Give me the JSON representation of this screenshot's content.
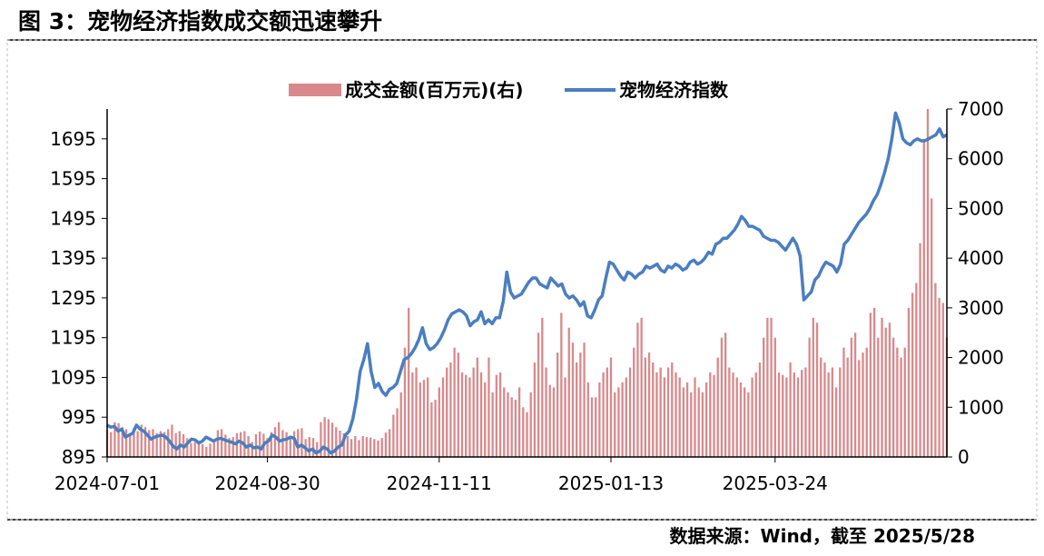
{
  "header": {
    "title": "图 3：宠物经济指数成交额迅速攀升"
  },
  "footer": {
    "source": "数据来源：Wind，截至 2025/5/28"
  },
  "colors": {
    "bar": "#d9898c",
    "line": "#4a7ec0",
    "axis": "#000000",
    "border": "#000000"
  },
  "chart_data": {
    "type": "bar+line",
    "legend": [
      "成交金额(百万元)(右)",
      "宠物经济指数"
    ],
    "x_ticks": [
      "2024-07-01",
      "2024-08-30",
      "2024-11-11",
      "2025-01-13",
      "2025-03-24"
    ],
    "y_left": {
      "ylim": [
        895,
        1770
      ],
      "ticks": [
        "895",
        "995",
        "1095",
        "1195",
        "1295",
        "1395",
        "1495",
        "1595",
        "1695"
      ]
    },
    "y_right": {
      "ylim": [
        0,
        7000
      ],
      "ticks": [
        "0",
        "1000",
        "2000",
        "3000",
        "4000",
        "5000",
        "6000",
        "7000"
      ]
    },
    "series": [
      {
        "name": "成交金额(百万元)(右)",
        "axis": "right",
        "values": [
          550,
          500,
          700,
          680,
          600,
          560,
          450,
          580,
          520,
          650,
          600,
          540,
          560,
          480,
          520,
          500,
          560,
          650,
          480,
          520,
          460,
          380,
          280,
          300,
          330,
          260,
          200,
          270,
          330,
          540,
          560,
          450,
          380,
          400,
          480,
          500,
          520,
          420,
          300,
          460,
          510,
          470,
          380,
          500,
          600,
          700,
          540,
          500,
          400,
          520,
          560,
          580,
          360,
          400,
          380,
          300,
          700,
          800,
          760,
          690,
          600,
          530,
          480,
          420,
          360,
          420,
          340,
          420,
          400,
          390,
          360,
          330,
          380,
          490,
          560,
          850,
          980,
          1300,
          2200,
          3000,
          1700,
          1800,
          1500,
          1550,
          1600,
          1100,
          1150,
          1400,
          1600,
          1800,
          1900,
          2200,
          2100,
          1700,
          1650,
          1600,
          1800,
          2000,
          1700,
          1500,
          2000,
          1300,
          1650,
          1700,
          1400,
          1300,
          1200,
          1150,
          1400,
          1000,
          900,
          1300,
          1900,
          2500,
          2800,
          1800,
          1450,
          1400,
          2100,
          2900,
          1600,
          2600,
          2300,
          1900,
          2100,
          2300,
          1500,
          1200,
          1200,
          1500,
          1700,
          1800,
          2000,
          1300,
          1400,
          1500,
          1600,
          1800,
          2200,
          2700,
          2800,
          2000,
          2100,
          1900,
          1700,
          1800,
          1600,
          1800,
          1900,
          1700,
          1600,
          1400,
          1500,
          1300,
          1600,
          1400,
          1300,
          1500,
          1700,
          1650,
          2000,
          2400,
          2500,
          1800,
          1700,
          1600,
          1500,
          1400,
          1300,
          1600,
          1700,
          1900,
          2400,
          2800,
          2800,
          2400,
          1700,
          1650,
          1600,
          1900,
          1700,
          1600,
          1750,
          1800,
          2400,
          2800,
          2700,
          2000,
          1900,
          1700,
          1800,
          1400,
          1800,
          2200,
          2000,
          2400,
          2500,
          1950,
          2100,
          2200,
          2900,
          3000,
          2400,
          2800,
          2600,
          2700,
          2400,
          2200,
          2000,
          2200,
          3000,
          3300,
          3500,
          4300,
          6400,
          7000,
          5200,
          3500,
          3200,
          3100,
          2400
        ],
        "color": "#d9898c"
      },
      {
        "name": "宠物经济指数",
        "axis": "left",
        "values": [
          975,
          970,
          972,
          960,
          965,
          945,
          950,
          955,
          975,
          965,
          960,
          950,
          940,
          945,
          948,
          950,
          945,
          935,
          922,
          915,
          925,
          920,
          930,
          940,
          938,
          930,
          935,
          945,
          940,
          935,
          940,
          942,
          938,
          935,
          932,
          928,
          935,
          930,
          920,
          925,
          918,
          920,
          915,
          930,
          935,
          950,
          945,
          935,
          938,
          940,
          945,
          942,
          920,
          925,
          918,
          910,
          915,
          905,
          910,
          920,
          915,
          905,
          910,
          920,
          925,
          950,
          960,
          990,
          1040,
          1110,
          1140,
          1180,
          1110,
          1070,
          1080,
          1060,
          1050,
          1065,
          1070,
          1080,
          1110,
          1140,
          1145,
          1155,
          1170,
          1190,
          1220,
          1180,
          1165,
          1170,
          1180,
          1195,
          1215,
          1240,
          1255,
          1260,
          1265,
          1260,
          1250,
          1225,
          1235,
          1240,
          1260,
          1230,
          1240,
          1230,
          1245,
          1245,
          1285,
          1360,
          1310,
          1295,
          1300,
          1305,
          1320,
          1335,
          1345,
          1345,
          1330,
          1325,
          1320,
          1345,
          1335,
          1325,
          1330,
          1305,
          1295,
          1300,
          1290,
          1275,
          1285,
          1250,
          1245,
          1265,
          1290,
          1300,
          1345,
          1385,
          1380,
          1365,
          1350,
          1340,
          1360,
          1355,
          1345,
          1355,
          1360,
          1375,
          1370,
          1375,
          1380,
          1365,
          1360,
          1375,
          1370,
          1380,
          1375,
          1365,
          1370,
          1385,
          1390,
          1380,
          1385,
          1395,
          1410,
          1405,
          1430,
          1435,
          1445,
          1445,
          1455,
          1465,
          1480,
          1500,
          1490,
          1475,
          1475,
          1470,
          1465,
          1450,
          1445,
          1440,
          1440,
          1435,
          1425,
          1415,
          1430,
          1445,
          1430,
          1400,
          1290,
          1300,
          1310,
          1340,
          1350,
          1370,
          1385,
          1380,
          1375,
          1360,
          1380,
          1430,
          1440,
          1455,
          1470,
          1485,
          1495,
          1505,
          1520,
          1540,
          1555,
          1580,
          1610,
          1645,
          1695,
          1760,
          1735,
          1695,
          1685,
          1680,
          1690,
          1695,
          1690,
          1690,
          1695,
          1700,
          1705,
          1720,
          1700,
          1705
        ]
      }
    ]
  }
}
